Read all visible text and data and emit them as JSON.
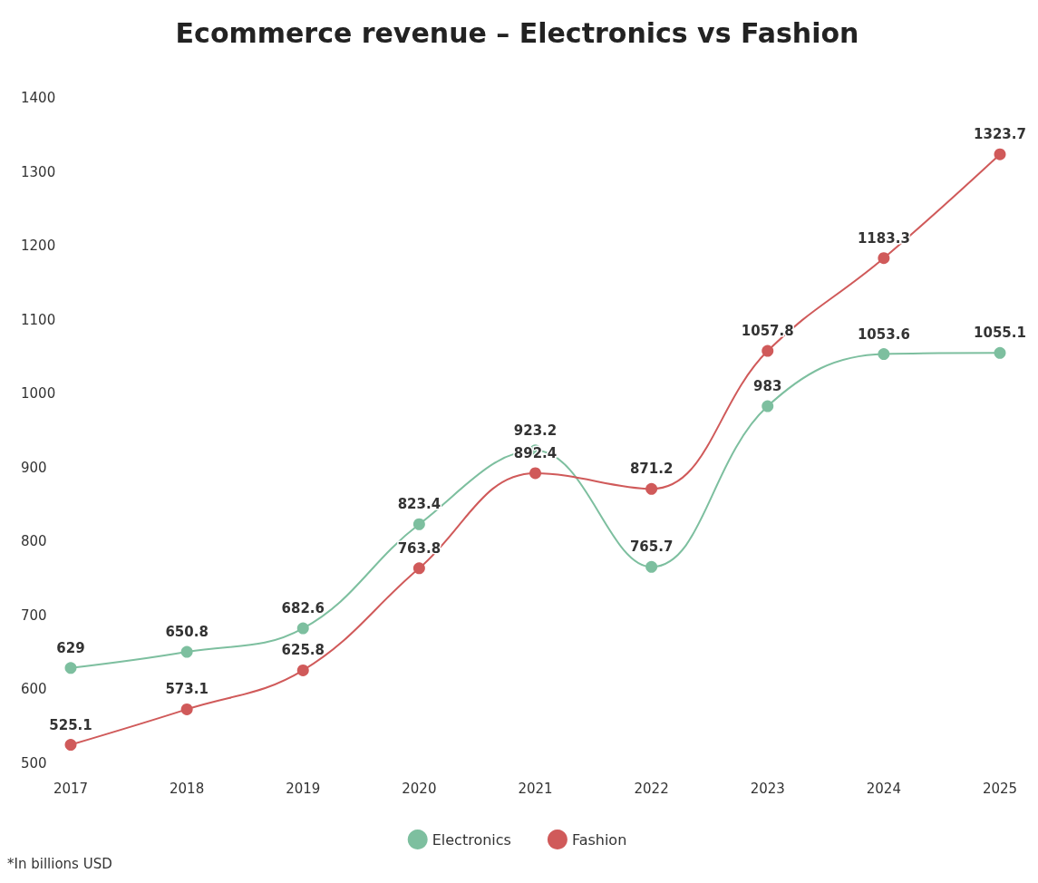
{
  "chart_data": {
    "type": "line",
    "title": "Ecommerce revenue – Electronics vs Fashion",
    "categories": [
      "2017",
      "2018",
      "2019",
      "2020",
      "2021",
      "2022",
      "2023",
      "2024",
      "2025"
    ],
    "series": [
      {
        "name": "Electronics",
        "color": "#7dbf9f",
        "values": [
          629,
          650.8,
          682.6,
          823.4,
          923.2,
          765.7,
          983,
          1053.6,
          1055.1
        ]
      },
      {
        "name": "Fashion",
        "color": "#d05a5a",
        "values": [
          525.1,
          573.1,
          625.8,
          763.8,
          892.4,
          871.2,
          1057.8,
          1183.3,
          1323.7
        ]
      }
    ],
    "ylim": [
      500,
      1400
    ],
    "yticks": [
      500,
      600,
      700,
      800,
      900,
      1000,
      1100,
      1200,
      1300,
      1400
    ],
    "grid": false,
    "legend": "bottom",
    "marker": "circle",
    "line_style": "solid",
    "data_labels": true,
    "annotations": [
      "*In billions USD"
    ]
  }
}
